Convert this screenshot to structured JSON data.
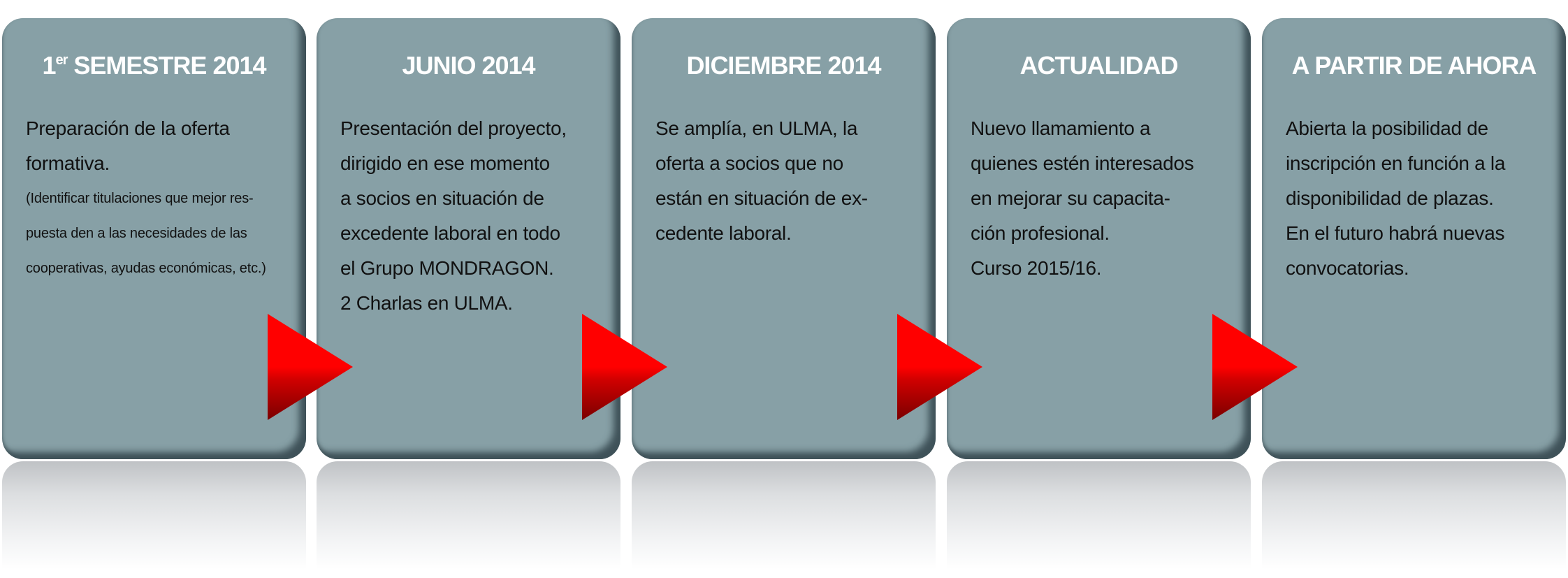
{
  "colors": {
    "card": "#87a0a6",
    "card_shadow": "#3f5259",
    "arrow": "#ff0000",
    "arrow_shade": "#7a0000",
    "title_text": "#ffffff",
    "body_text": "#111111"
  },
  "cards": [
    {
      "title": "1",
      "title_sup": "er",
      "title_rest": " SEMESTRE 2014",
      "lines": [
        "Preparación de la oferta",
        "formativa."
      ],
      "small_lines": [
        "(Identificar titulaciones que mejor res-",
        "puesta den a las necesidades de las",
        "cooperativas, ayudas económicas, etc.)"
      ]
    },
    {
      "title": "JUNIO 2014",
      "title_sup": "",
      "title_rest": "",
      "lines": [
        "Presentación del proyecto,",
        "dirigido en ese momento",
        "a socios en situación de",
        "excedente laboral en todo",
        "el Grupo MONDRAGON.",
        "2 Charlas en ULMA."
      ],
      "small_lines": []
    },
    {
      "title": "DICIEMBRE 2014",
      "title_sup": "",
      "title_rest": "",
      "lines": [
        "Se amplía, en ULMA, la",
        "oferta a socios que no",
        "están en situación de ex-",
        "cedente laboral."
      ],
      "small_lines": []
    },
    {
      "title": "ACTUALIDAD",
      "title_sup": "",
      "title_rest": "",
      "lines": [
        "Nuevo llamamiento a",
        "quienes estén interesados",
        "en mejorar su capacita-",
        "ción profesional.",
        "Curso 2015/16."
      ],
      "small_lines": []
    },
    {
      "title": "A PARTIR DE AHORA",
      "title_sup": "",
      "title_rest": "",
      "lines": [
        "Abierta la posibilidad de",
        "inscripción en función a la",
        "disponibilidad de plazas.",
        "En el futuro habrá nuevas",
        "convocatorias."
      ],
      "small_lines": []
    }
  ],
  "arrows": [
    {
      "icon": "triangle-right-icon"
    },
    {
      "icon": "triangle-right-icon"
    },
    {
      "icon": "triangle-right-icon"
    },
    {
      "icon": "triangle-right-icon"
    }
  ]
}
